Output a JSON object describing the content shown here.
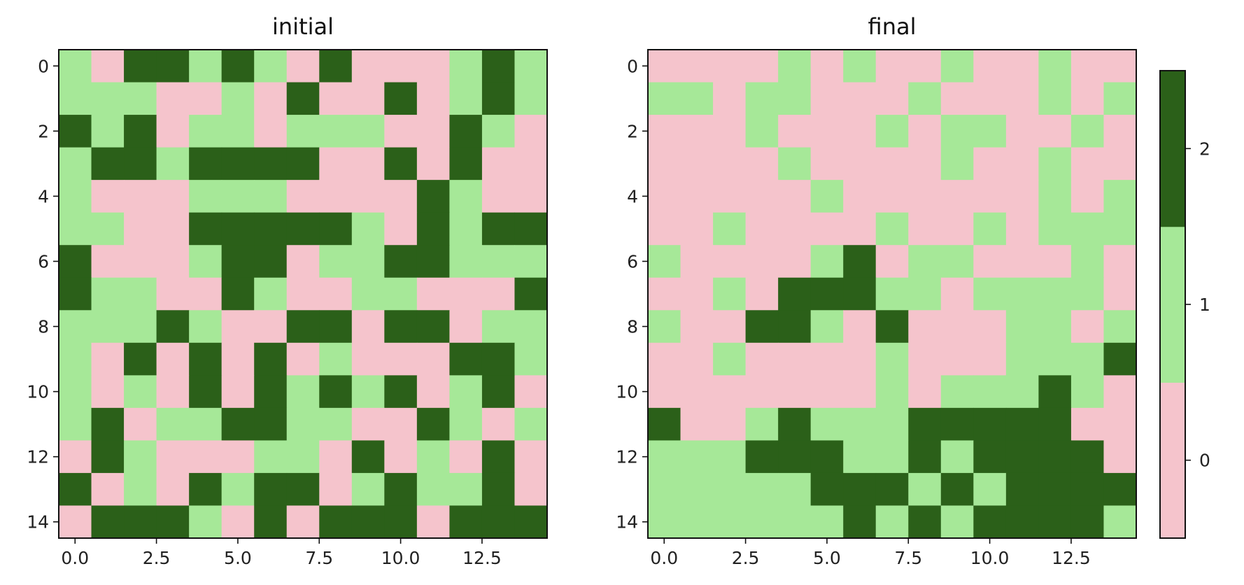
{
  "chart_data": [
    {
      "type": "heatmap",
      "title": "initial",
      "xlabel": "",
      "ylabel": "",
      "x_ticks": [
        "0.0",
        "2.5",
        "5.0",
        "7.5",
        "10.0",
        "12.5"
      ],
      "x_tick_values": [
        0,
        2.5,
        5,
        7.5,
        10,
        12.5
      ],
      "y_ticks": [
        "0",
        "2",
        "4",
        "6",
        "8",
        "10",
        "12",
        "14"
      ],
      "y_tick_values": [
        0,
        2,
        4,
        6,
        8,
        10,
        12,
        14
      ],
      "xlim": [
        -0.5,
        14.5
      ],
      "ylim": [
        14.5,
        -0.5
      ],
      "grid": false,
      "values": [
        [
          1,
          0,
          2,
          2,
          1,
          2,
          1,
          0,
          2,
          0,
          0,
          0,
          1,
          2,
          1
        ],
        [
          1,
          1,
          1,
          0,
          0,
          1,
          0,
          2,
          0,
          0,
          2,
          0,
          1,
          2,
          1
        ],
        [
          2,
          1,
          2,
          0,
          1,
          1,
          0,
          1,
          1,
          1,
          0,
          0,
          2,
          1,
          0
        ],
        [
          1,
          2,
          2,
          1,
          2,
          2,
          2,
          2,
          0,
          0,
          2,
          0,
          2,
          0,
          0
        ],
        [
          1,
          0,
          0,
          0,
          1,
          1,
          1,
          0,
          0,
          0,
          0,
          2,
          1,
          0,
          0
        ],
        [
          1,
          1,
          0,
          0,
          2,
          2,
          2,
          2,
          2,
          1,
          0,
          2,
          1,
          2,
          2
        ],
        [
          2,
          0,
          0,
          0,
          1,
          2,
          2,
          0,
          1,
          1,
          2,
          2,
          1,
          1,
          1
        ],
        [
          2,
          1,
          1,
          0,
          0,
          2,
          1,
          0,
          0,
          1,
          1,
          0,
          0,
          0,
          2
        ],
        [
          1,
          1,
          1,
          2,
          1,
          0,
          0,
          2,
          2,
          0,
          2,
          2,
          0,
          1,
          1
        ],
        [
          1,
          0,
          2,
          0,
          2,
          0,
          2,
          0,
          1,
          0,
          0,
          0,
          2,
          2,
          1
        ],
        [
          1,
          0,
          1,
          0,
          2,
          0,
          2,
          1,
          2,
          1,
          2,
          0,
          1,
          2,
          0
        ],
        [
          1,
          2,
          0,
          1,
          1,
          2,
          2,
          1,
          1,
          0,
          0,
          2,
          1,
          0,
          1
        ],
        [
          0,
          2,
          1,
          0,
          0,
          0,
          1,
          1,
          0,
          2,
          0,
          1,
          0,
          2,
          0
        ],
        [
          2,
          0,
          1,
          0,
          2,
          1,
          2,
          2,
          0,
          1,
          2,
          1,
          1,
          2,
          0
        ],
        [
          0,
          2,
          2,
          2,
          1,
          0,
          2,
          0,
          2,
          2,
          2,
          0,
          2,
          2,
          2
        ]
      ]
    },
    {
      "type": "heatmap",
      "title": "final",
      "xlabel": "",
      "ylabel": "",
      "x_ticks": [
        "0.0",
        "2.5",
        "5.0",
        "7.5",
        "10.0",
        "12.5"
      ],
      "x_tick_values": [
        0,
        2.5,
        5,
        7.5,
        10,
        12.5
      ],
      "y_ticks": [
        "0",
        "2",
        "4",
        "6",
        "8",
        "10",
        "12",
        "14"
      ],
      "y_tick_values": [
        0,
        2,
        4,
        6,
        8,
        10,
        12,
        14
      ],
      "xlim": [
        -0.5,
        14.5
      ],
      "ylim": [
        14.5,
        -0.5
      ],
      "grid": false,
      "values": [
        [
          0,
          0,
          0,
          0,
          1,
          0,
          1,
          0,
          0,
          1,
          0,
          0,
          1,
          0,
          0
        ],
        [
          1,
          1,
          0,
          1,
          1,
          0,
          0,
          0,
          1,
          0,
          0,
          0,
          1,
          0,
          1
        ],
        [
          0,
          0,
          0,
          1,
          0,
          0,
          0,
          1,
          0,
          1,
          1,
          0,
          0,
          1,
          0
        ],
        [
          0,
          0,
          0,
          0,
          1,
          0,
          0,
          0,
          0,
          1,
          0,
          0,
          1,
          0,
          0
        ],
        [
          0,
          0,
          0,
          0,
          0,
          1,
          0,
          0,
          0,
          0,
          0,
          0,
          1,
          0,
          1
        ],
        [
          0,
          0,
          1,
          0,
          0,
          0,
          0,
          1,
          0,
          0,
          1,
          0,
          1,
          1,
          1
        ],
        [
          1,
          0,
          0,
          0,
          0,
          1,
          2,
          0,
          1,
          1,
          0,
          0,
          0,
          1,
          0
        ],
        [
          0,
          0,
          1,
          0,
          2,
          2,
          2,
          1,
          1,
          0,
          1,
          1,
          1,
          1,
          0
        ],
        [
          1,
          0,
          0,
          2,
          2,
          1,
          0,
          2,
          0,
          0,
          0,
          1,
          1,
          0,
          1
        ],
        [
          0,
          0,
          1,
          0,
          0,
          0,
          0,
          1,
          0,
          0,
          0,
          1,
          1,
          1,
          2
        ],
        [
          0,
          0,
          0,
          0,
          0,
          0,
          0,
          1,
          0,
          1,
          1,
          1,
          2,
          1,
          0
        ],
        [
          2,
          0,
          0,
          1,
          2,
          1,
          1,
          1,
          2,
          2,
          2,
          2,
          2,
          0,
          0
        ],
        [
          1,
          1,
          1,
          2,
          2,
          2,
          1,
          1,
          2,
          1,
          2,
          2,
          2,
          2,
          0
        ],
        [
          1,
          1,
          1,
          1,
          1,
          2,
          2,
          2,
          1,
          2,
          1,
          2,
          2,
          2,
          2
        ],
        [
          1,
          1,
          1,
          1,
          1,
          1,
          2,
          1,
          2,
          1,
          2,
          2,
          2,
          2,
          1
        ]
      ]
    }
  ],
  "colormap": {
    "levels": [
      0,
      1,
      2
    ],
    "colors": [
      "#f5c4cc",
      "#a6e898",
      "#2b6019"
    ],
    "colorbar_ticks": [
      "0",
      "1",
      "2"
    ]
  }
}
